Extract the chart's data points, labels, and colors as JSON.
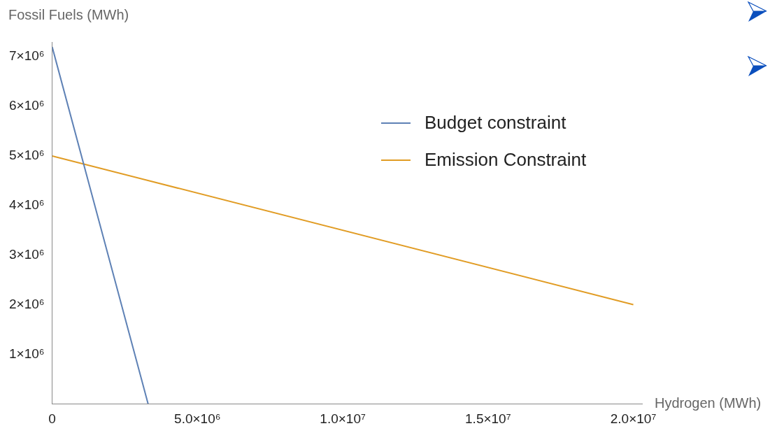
{
  "chart_data": {
    "type": "line",
    "xlabel": "Hydrogen (MWh)",
    "ylabel": "Fossil Fuels (MWh)",
    "xlim": [
      0,
      20300000
    ],
    "ylim": [
      0,
      7300000
    ],
    "xticks": [
      {
        "value": 0,
        "label": "0"
      },
      {
        "value": 5000000,
        "label": "5.0×10⁶"
      },
      {
        "value": 10000000,
        "label": "1.0×10⁷"
      },
      {
        "value": 15000000,
        "label": "1.5×10⁷"
      },
      {
        "value": 20000000,
        "label": "2.0×10⁷"
      }
    ],
    "yticks": [
      {
        "value": 1000000,
        "label": "1×10⁶"
      },
      {
        "value": 2000000,
        "label": "2×10⁶"
      },
      {
        "value": 3000000,
        "label": "3×10⁶"
      },
      {
        "value": 4000000,
        "label": "4×10⁶"
      },
      {
        "value": 5000000,
        "label": "5×10⁶"
      },
      {
        "value": 6000000,
        "label": "6×10⁶"
      },
      {
        "value": 7000000,
        "label": "7×10⁶"
      }
    ],
    "series": [
      {
        "name": "Budget constraint",
        "color": "#5e81b5",
        "x": [
          0,
          3300000
        ],
        "values": [
          7200000,
          0
        ]
      },
      {
        "name": "Emission Constraint",
        "color": "#e19c24",
        "x": [
          0,
          20000000
        ],
        "values": [
          5000000,
          2000000
        ]
      }
    ],
    "legend": "top right",
    "marker": "none",
    "line_style": "solid",
    "grid": false
  }
}
